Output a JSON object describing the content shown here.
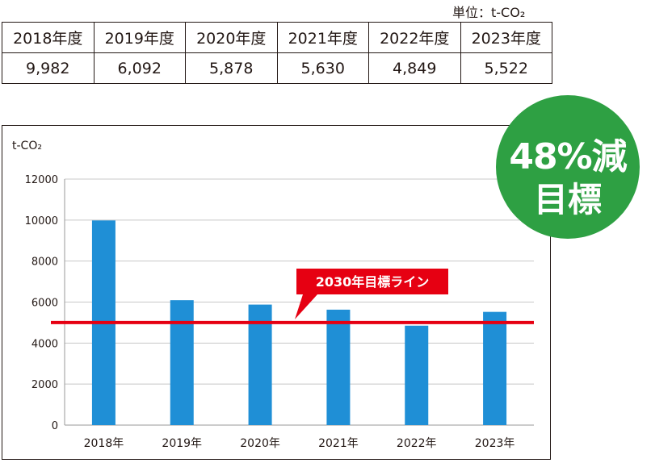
{
  "unit_label": "単位：t-CO₂",
  "table": {
    "headers": [
      "2018年度",
      "2019年度",
      "2020年度",
      "2021年度",
      "2022年度",
      "2023年度"
    ],
    "values": [
      "9,982",
      "6,092",
      "5,878",
      "5,630",
      "4,849",
      "5,522"
    ]
  },
  "badge": {
    "line1": "48%減",
    "line2": "目標"
  },
  "chart_data": {
    "type": "bar",
    "ylabel": "t-CO₂",
    "categories": [
      "2018年",
      "2019年",
      "2020年",
      "2021年",
      "2022年",
      "2023年"
    ],
    "values": [
      9982,
      6092,
      5878,
      5630,
      4849,
      5522
    ],
    "ylim": [
      0,
      12000
    ],
    "yticks": [
      0,
      2000,
      4000,
      6000,
      8000,
      10000,
      12000
    ],
    "grid": true,
    "bar_color": "#1f8fd6",
    "target": {
      "value": 5000,
      "label": "2030年目標ライン",
      "color": "#e60012"
    }
  }
}
